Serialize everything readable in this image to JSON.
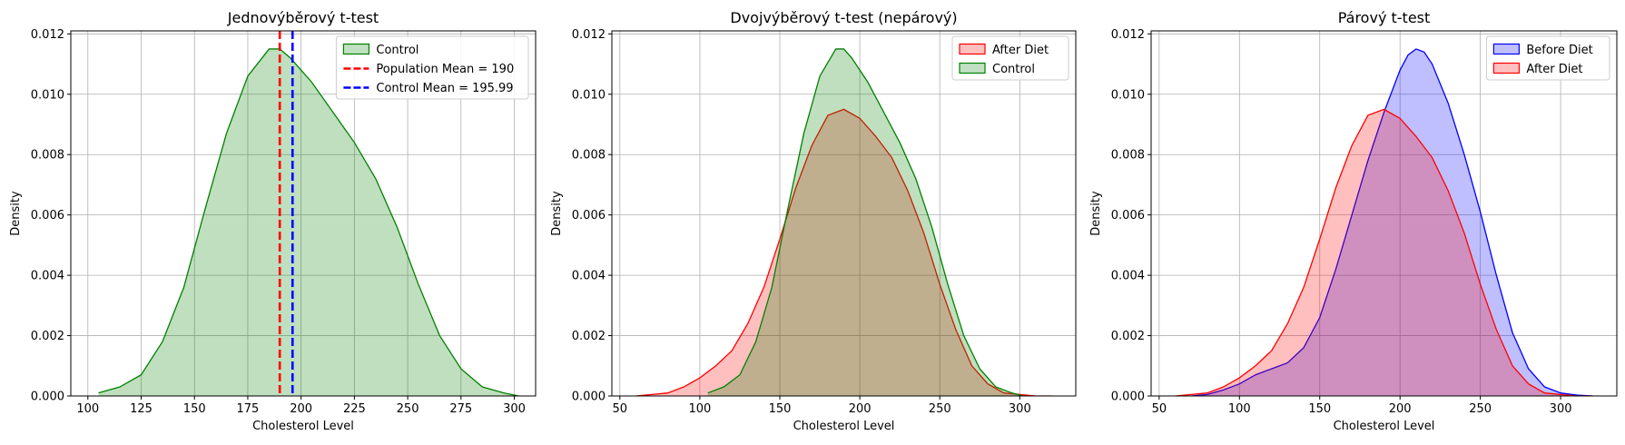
{
  "chart_data": [
    {
      "type": "area",
      "title": "Jednovýběrový t-test",
      "xlabel": "Cholesterol Level",
      "ylabel": "Density",
      "xlim": [
        92,
        310
      ],
      "ylim": [
        0,
        0.0121
      ],
      "xticks": [
        100,
        125,
        150,
        175,
        200,
        225,
        250,
        275,
        300
      ],
      "yticks": [
        0.0,
        0.002,
        0.004,
        0.006,
        0.008,
        0.01,
        0.012
      ],
      "grid": true,
      "legend_position": "top-right",
      "legend": [
        {
          "kind": "patch",
          "label": "Control",
          "fill": "#c1e0c1",
          "stroke": "#008000"
        },
        {
          "kind": "vline",
          "label": "Population Mean = 190",
          "color": "#ff0000"
        },
        {
          "kind": "vline",
          "label": "Control Mean = 195.99",
          "color": "#0000ff"
        }
      ],
      "series": [
        {
          "name": "Control",
          "fill": "#008000",
          "fill_opacity": 0.25,
          "stroke": "#008000",
          "x": [
            105,
            115,
            125,
            135,
            145,
            155,
            165,
            175,
            185,
            190,
            195,
            205,
            215,
            225,
            235,
            245,
            255,
            265,
            275,
            285,
            295,
            302
          ],
          "y": [
            0.0001,
            0.0003,
            0.0007,
            0.0018,
            0.0036,
            0.0062,
            0.0087,
            0.0106,
            0.0115,
            0.0115,
            0.0112,
            0.0104,
            0.0094,
            0.0084,
            0.0072,
            0.0056,
            0.0037,
            0.002,
            0.0009,
            0.0003,
            0.0001,
            0.0
          ]
        }
      ],
      "vlines": [
        {
          "x": 190,
          "color": "#ff0000",
          "label": "Population Mean = 190"
        },
        {
          "x": 195.99,
          "color": "#0000ff",
          "label": "Control Mean = 195.99"
        }
      ]
    },
    {
      "type": "area",
      "title": "Dvojvýběrový t-test (nepárový)",
      "xlabel": "Cholesterol Level",
      "ylabel": "Density",
      "xlim": [
        45,
        335
      ],
      "ylim": [
        0,
        0.0121
      ],
      "xticks": [
        50,
        100,
        150,
        200,
        250,
        300
      ],
      "yticks": [
        0.0,
        0.002,
        0.004,
        0.006,
        0.008,
        0.01,
        0.012
      ],
      "grid": true,
      "legend_position": "top-right",
      "legend": [
        {
          "kind": "patch",
          "label": "After Diet",
          "fill": "#ffc0c0",
          "stroke": "#ff0000"
        },
        {
          "kind": "patch",
          "label": "Control",
          "fill": "#c1e0c1",
          "stroke": "#008000"
        }
      ],
      "series": [
        {
          "name": "After Diet",
          "fill": "#ff0000",
          "fill_opacity": 0.25,
          "stroke": "#ff0000",
          "x": [
            60,
            70,
            80,
            90,
            100,
            110,
            120,
            130,
            140,
            150,
            160,
            170,
            180,
            190,
            200,
            210,
            220,
            230,
            240,
            250,
            260,
            270,
            280,
            290,
            300,
            310,
            320
          ],
          "y": [
            0.0,
            5e-05,
            0.0001,
            0.0003,
            0.0006,
            0.001,
            0.0015,
            0.0024,
            0.0036,
            0.0052,
            0.0069,
            0.0083,
            0.0093,
            0.0095,
            0.0092,
            0.0086,
            0.0079,
            0.0068,
            0.0054,
            0.0037,
            0.0022,
            0.001,
            0.0004,
            0.0001,
            5e-05,
            0.0,
            0.0
          ]
        },
        {
          "name": "Control",
          "fill": "#008000",
          "fill_opacity": 0.25,
          "stroke": "#008000",
          "x": [
            105,
            115,
            125,
            135,
            145,
            155,
            165,
            175,
            185,
            190,
            195,
            205,
            215,
            225,
            235,
            245,
            255,
            265,
            275,
            285,
            295,
            302
          ],
          "y": [
            0.0001,
            0.0003,
            0.0007,
            0.0018,
            0.0036,
            0.0062,
            0.0087,
            0.0106,
            0.0115,
            0.0115,
            0.0112,
            0.0104,
            0.0094,
            0.0084,
            0.0072,
            0.0056,
            0.0037,
            0.002,
            0.0009,
            0.0003,
            0.0001,
            0.0
          ]
        }
      ],
      "vlines": []
    },
    {
      "type": "area",
      "title": "Párový t-test",
      "xlabel": "Cholesterol Level",
      "ylabel": "Density",
      "xlim": [
        45,
        335
      ],
      "ylim": [
        0,
        0.0121
      ],
      "xticks": [
        50,
        100,
        150,
        200,
        250,
        300
      ],
      "yticks": [
        0.0,
        0.002,
        0.004,
        0.006,
        0.008,
        0.01,
        0.012
      ],
      "grid": true,
      "legend_position": "top-right",
      "legend": [
        {
          "kind": "patch",
          "label": "Before Diet",
          "fill": "#c0c0ff",
          "stroke": "#0000ff"
        },
        {
          "kind": "patch",
          "label": "After Diet",
          "fill": "#ffc0c0",
          "stroke": "#ff0000"
        }
      ],
      "series": [
        {
          "name": "Before Diet",
          "fill": "#0000ff",
          "fill_opacity": 0.25,
          "stroke": "#0000ff",
          "x": [
            70,
            80,
            90,
            100,
            110,
            120,
            130,
            140,
            150,
            160,
            170,
            180,
            190,
            200,
            205,
            210,
            215,
            220,
            230,
            240,
            250,
            260,
            270,
            280,
            290,
            300,
            310,
            320
          ],
          "y": [
            0.0,
            5e-05,
            0.0002,
            0.0004,
            0.0007,
            0.0009,
            0.0011,
            0.0016,
            0.0026,
            0.0042,
            0.006,
            0.0078,
            0.0094,
            0.0108,
            0.0113,
            0.0115,
            0.0114,
            0.011,
            0.0097,
            0.008,
            0.0061,
            0.004,
            0.0021,
            0.0009,
            0.0003,
            0.0001,
            3e-05,
            0.0
          ]
        },
        {
          "name": "After Diet",
          "fill": "#ff0000",
          "fill_opacity": 0.25,
          "stroke": "#ff0000",
          "x": [
            60,
            70,
            80,
            90,
            100,
            110,
            120,
            130,
            140,
            150,
            160,
            170,
            180,
            190,
            200,
            210,
            220,
            230,
            240,
            250,
            260,
            270,
            280,
            290,
            300,
            310,
            320
          ],
          "y": [
            0.0,
            5e-05,
            0.0001,
            0.0003,
            0.0006,
            0.001,
            0.0015,
            0.0024,
            0.0036,
            0.0052,
            0.0069,
            0.0083,
            0.0093,
            0.0095,
            0.0092,
            0.0086,
            0.0079,
            0.0068,
            0.0054,
            0.0037,
            0.0022,
            0.001,
            0.0004,
            0.0001,
            5e-05,
            0.0,
            0.0
          ]
        }
      ],
      "vlines": []
    }
  ]
}
